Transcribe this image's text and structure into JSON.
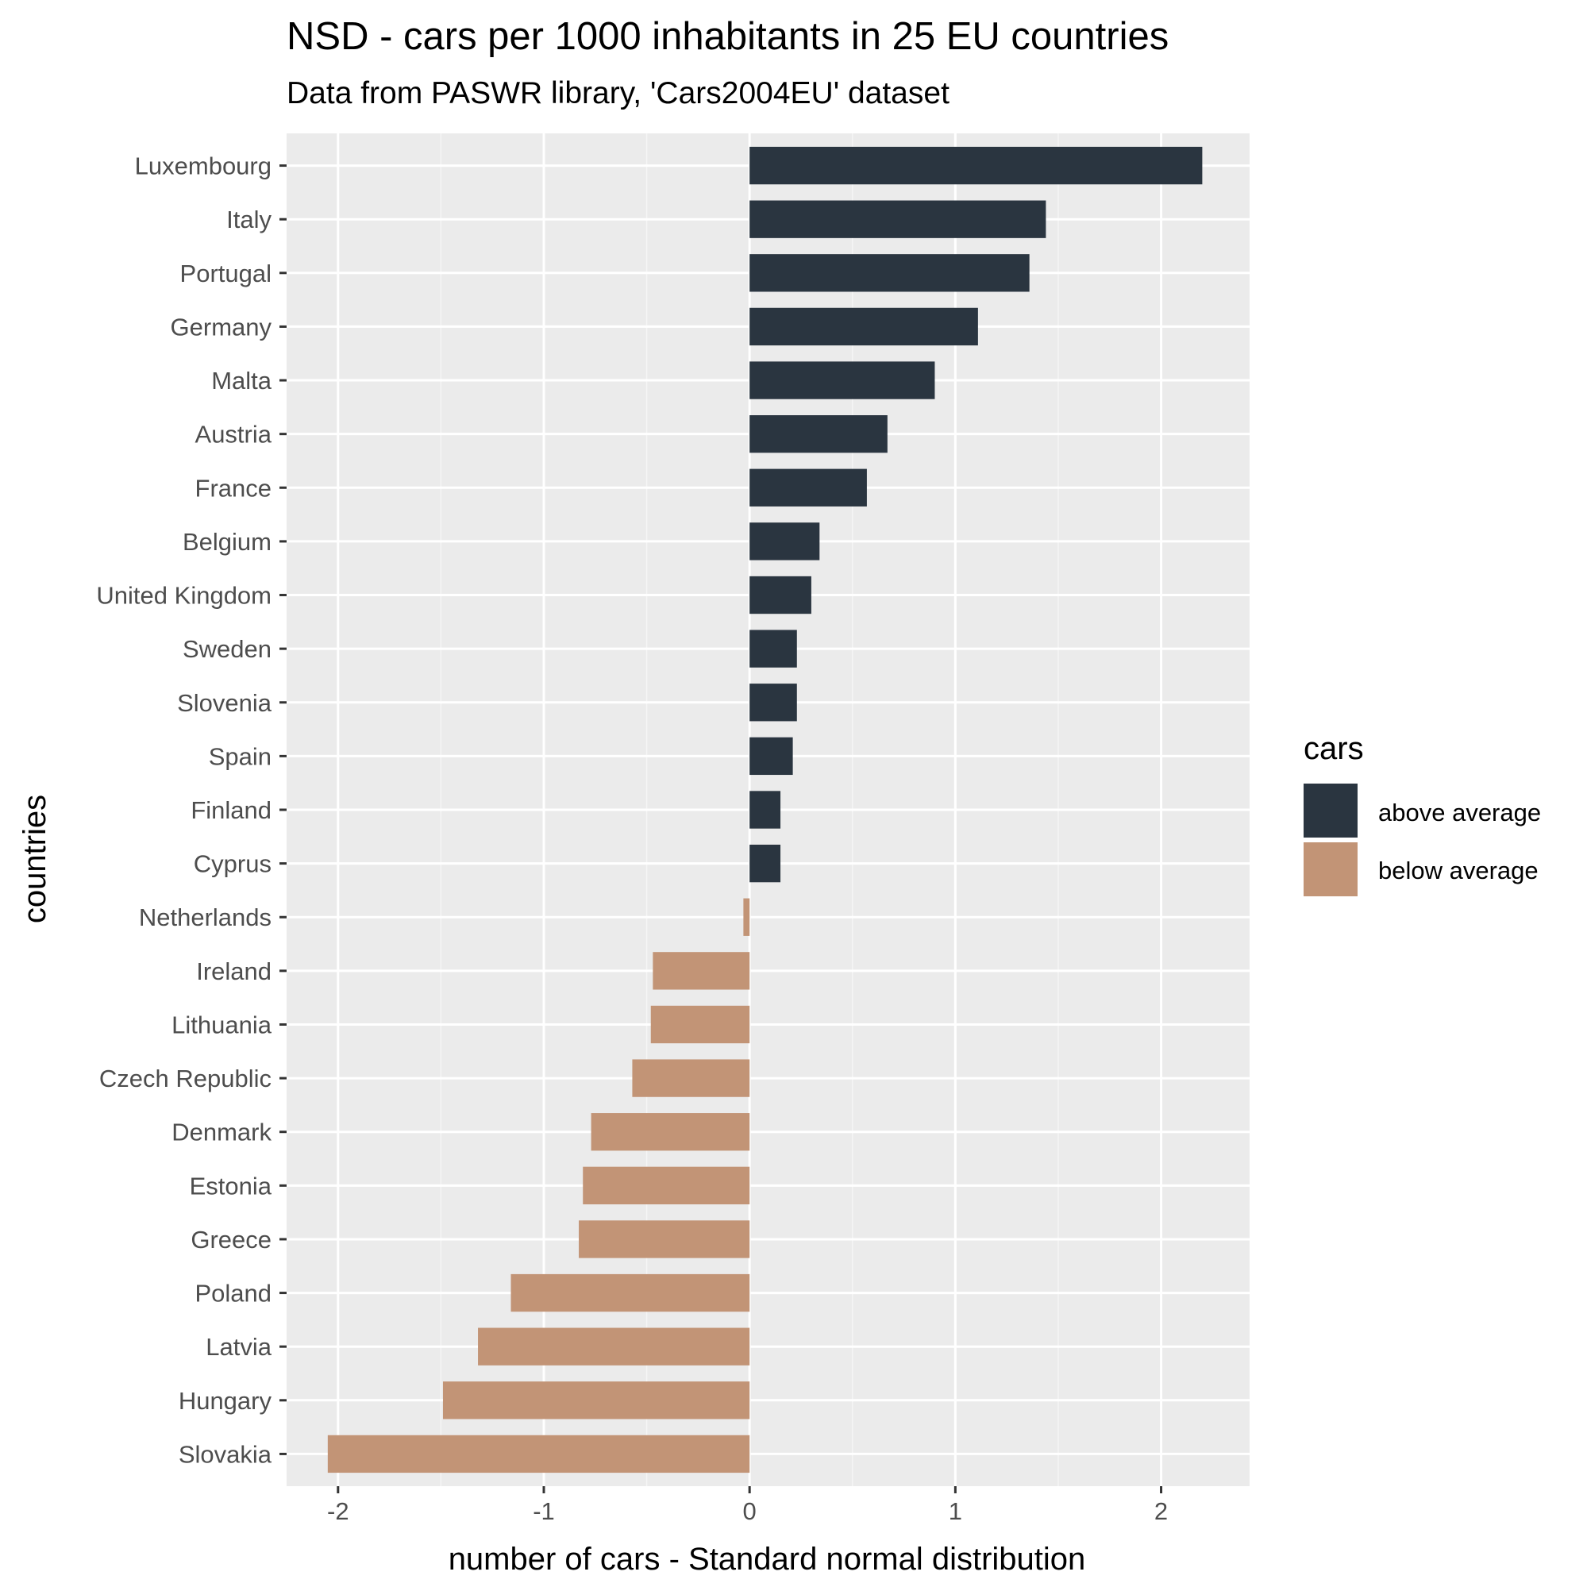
{
  "colors": {
    "panel_background": "#ebebeb",
    "grid_major": "#ffffff",
    "grid_minor": "#f5f5f5",
    "above_average": "#2a3540",
    "below_average": "#c29476",
    "tick_text": "#4d4d4d",
    "tick_mark": "#333333"
  },
  "chart_data": {
    "type": "bar",
    "orientation": "horizontal",
    "title": "NSD - cars per 1000 inhabitants in 25 EU countries",
    "subtitle": "Data from PASWR library, 'Cars2004EU' dataset",
    "xlabel": "number of cars - Standard normal distribution",
    "ylabel": "countries",
    "xlim": [
      -2.25,
      2.43
    ],
    "x_ticks": [
      -2,
      -1,
      0,
      1,
      2
    ],
    "x_tick_labels": [
      "-2",
      "-1",
      "0",
      "1",
      "2"
    ],
    "grid": true,
    "legend": {
      "title": "cars",
      "placement": "right",
      "entries": [
        {
          "label": "above average",
          "color": "#2a3540"
        },
        {
          "label": "below average",
          "color": "#c29476"
        }
      ]
    },
    "categories": [
      "Luxembourg",
      "Italy",
      "Portugal",
      "Germany",
      "Malta",
      "Austria",
      "France",
      "Belgium",
      "United Kingdom",
      "Sweden",
      "Slovenia",
      "Spain",
      "Finland",
      "Cyprus",
      "Netherlands",
      "Ireland",
      "Lithuania",
      "Czech Republic",
      "Denmark",
      "Estonia",
      "Greece",
      "Poland",
      "Latvia",
      "Hungary",
      "Slovakia"
    ],
    "values": [
      2.2,
      1.44,
      1.36,
      1.11,
      0.9,
      0.67,
      0.57,
      0.34,
      0.3,
      0.23,
      0.23,
      0.21,
      0.15,
      0.15,
      -0.03,
      -0.47,
      -0.48,
      -0.57,
      -0.77,
      -0.81,
      -0.83,
      -1.16,
      -1.32,
      -1.49,
      -2.05
    ],
    "groups": [
      "above average",
      "above average",
      "above average",
      "above average",
      "above average",
      "above average",
      "above average",
      "above average",
      "above average",
      "above average",
      "above average",
      "above average",
      "above average",
      "above average",
      "below average",
      "below average",
      "below average",
      "below average",
      "below average",
      "below average",
      "below average",
      "below average",
      "below average",
      "below average",
      "below average"
    ]
  }
}
